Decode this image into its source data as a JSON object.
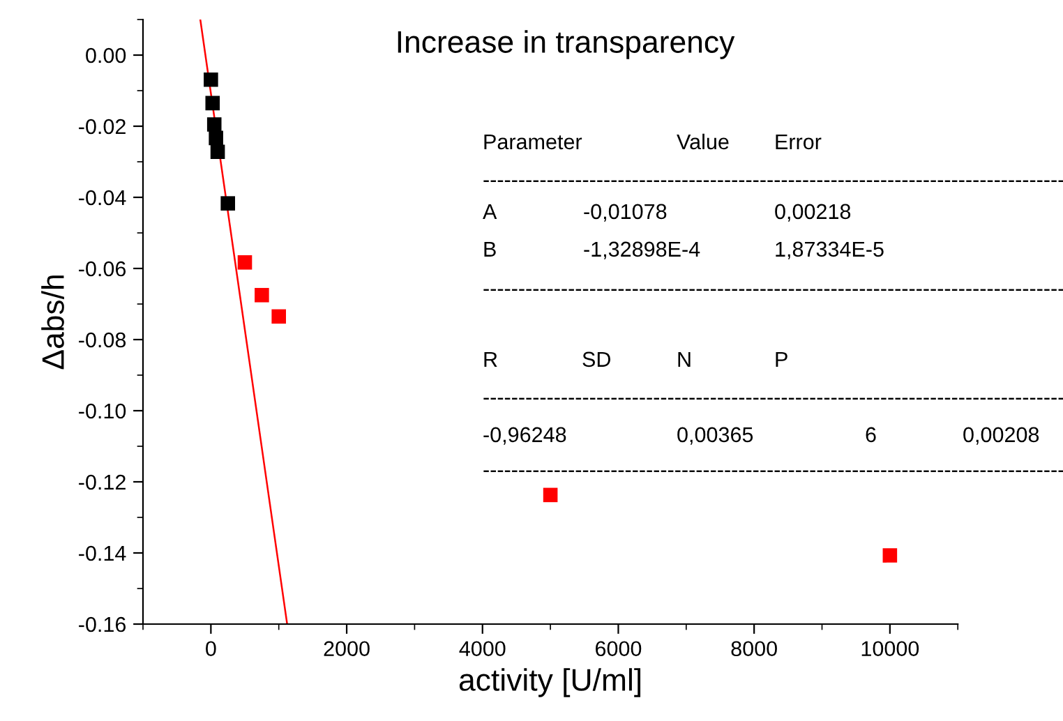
{
  "chart_data": {
    "type": "scatter",
    "title": "Increase in transparency",
    "xlabel": "activity [U/ml]",
    "ylabel": "Δabs/h",
    "series": [
      {
        "color": "#000000",
        "x": [
          0,
          25,
          50,
          75,
          100,
          250
        ],
        "values": [
          -0.0069,
          -0.0135,
          -0.0195,
          -0.0233,
          -0.0272,
          -0.0417
        ]
      },
      {
        "color": "#ff0000",
        "x": [
          500,
          750,
          1000,
          5000,
          10000
        ],
        "values": [
          -0.0583,
          -0.0675,
          -0.0735,
          -0.1237,
          -0.1407
        ]
      },
      {
        "type": "line",
        "color": "#ff0000",
        "marker": "none",
        "x": [
          -156,
          1123
        ],
        "values": [
          0.01,
          -0.16
        ]
      }
    ],
    "marker": "square",
    "xlim": [
      -1000,
      11000
    ],
    "xticks": [
      0,
      2000,
      4000,
      6000,
      8000,
      10000
    ],
    "ylim": [
      -0.16,
      0.01
    ],
    "yticks": [
      {
        "value": -0.16,
        "label": "-0.16"
      },
      {
        "value": -0.14,
        "label": "-0.14"
      },
      {
        "value": -0.12,
        "label": "-0.12"
      },
      {
        "value": -0.1,
        "label": "-0.10"
      },
      {
        "value": -0.08,
        "label": "-0.08"
      },
      {
        "value": -0.06,
        "label": "-0.06"
      },
      {
        "value": -0.04,
        "label": "-0.04"
      },
      {
        "value": -0.02,
        "label": "-0.02"
      },
      {
        "value": 0,
        "label": "0.00"
      }
    ],
    "grid": false,
    "legend": false,
    "annotations": [
      "Parameter",
      "Value",
      "Error",
      "----------------------------------------------------------------------------------",
      "A",
      "-0,01078",
      "0,00218",
      "B",
      "-1,32898E-4",
      "1,87334E-5",
      "----------------------------------------------------------------------------------",
      "R",
      "SD",
      "N",
      "P",
      "----------------------------------------------------------------------------------",
      "-0,96248",
      "0,00365",
      "6",
      "0,00208",
      "----------------------------------------------------------------------------------"
    ]
  }
}
